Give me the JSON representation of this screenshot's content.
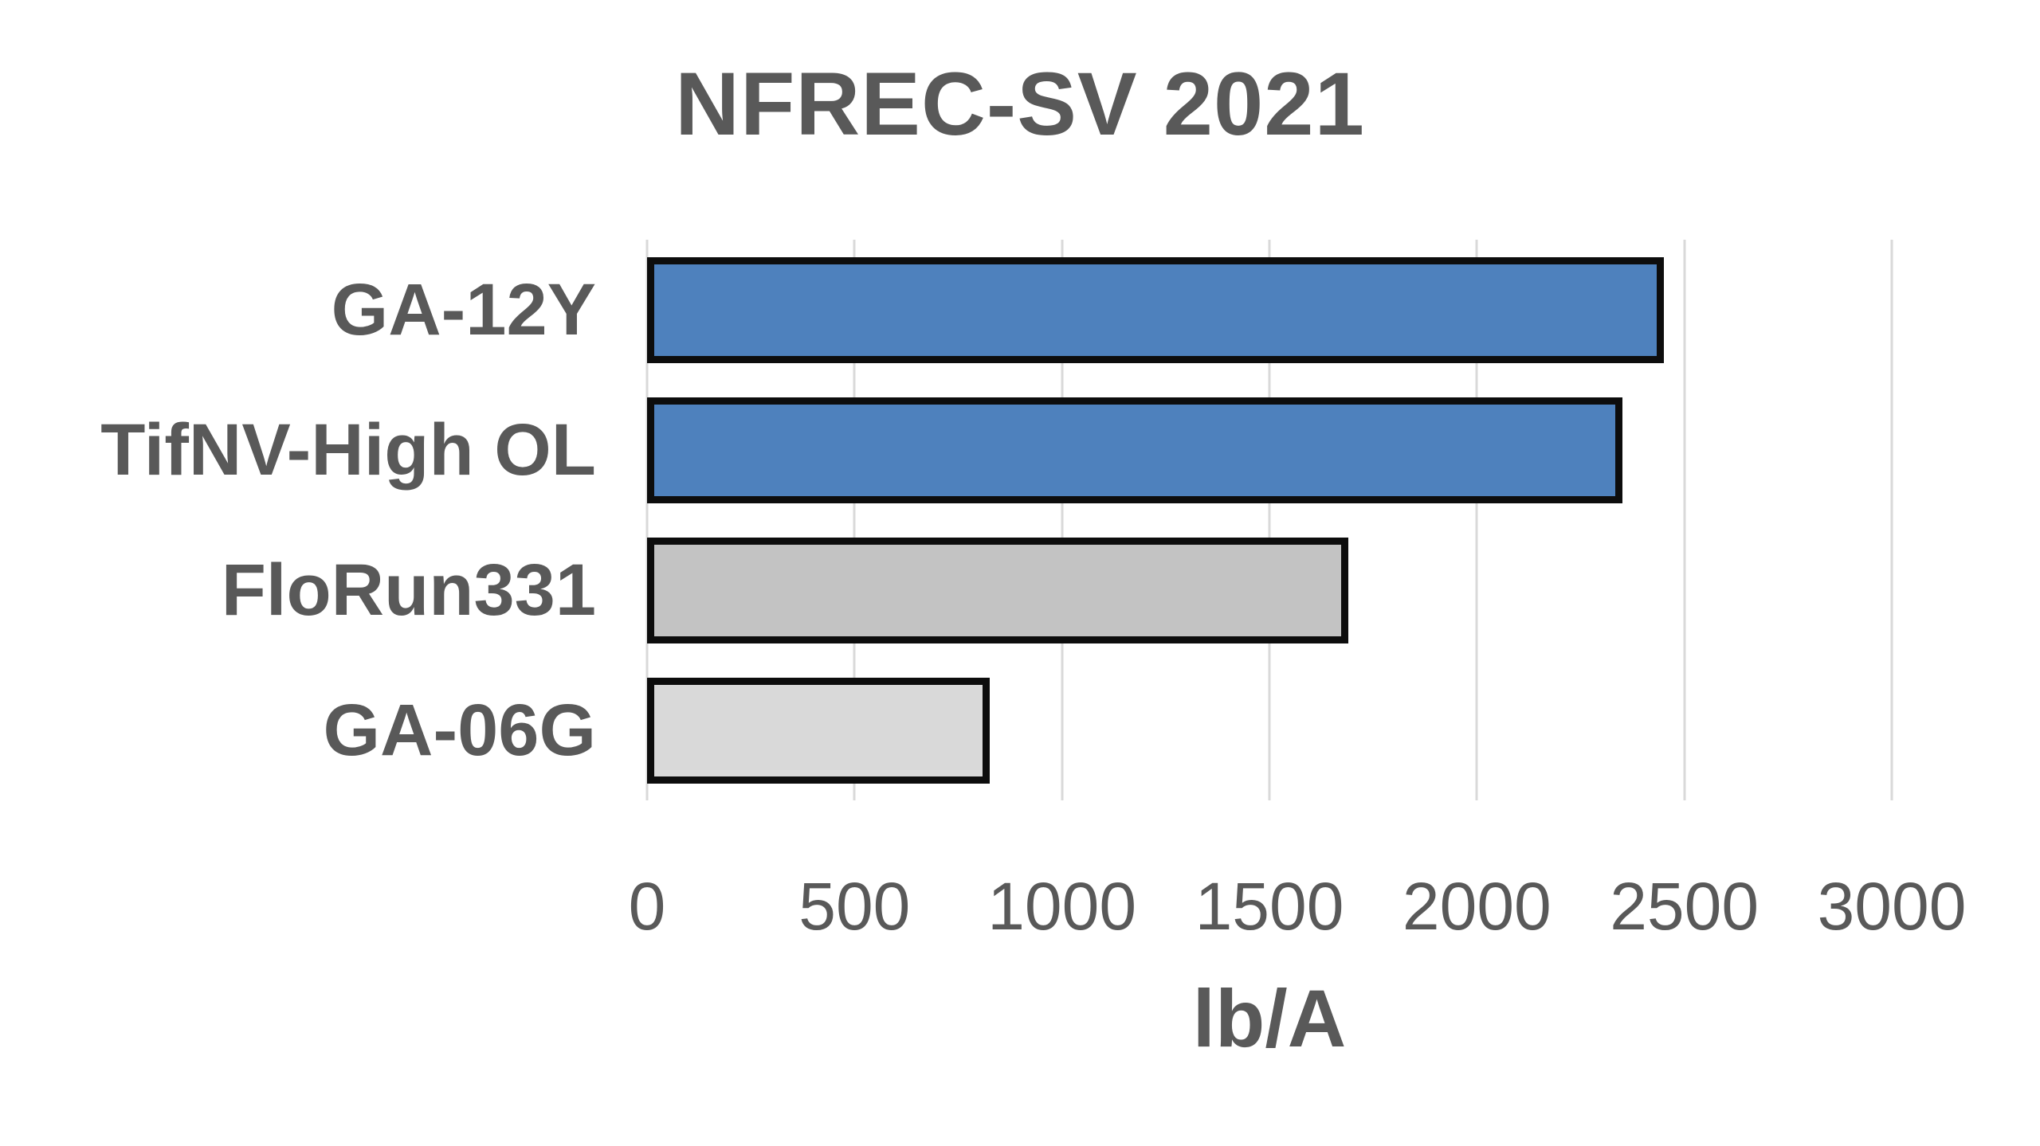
{
  "chart_data": {
    "type": "bar",
    "orientation": "horizontal",
    "title": "NFREC-SV 2021",
    "xlabel": "lb/A",
    "ylabel": "",
    "categories": [
      "GA-12Y",
      "TifNV-High OL",
      "FloRun331",
      "GA-06G"
    ],
    "values": [
      2450,
      2350,
      1690,
      825
    ],
    "bar_colors": [
      "#4E81BD",
      "#4E81BD",
      "#C3C3C3",
      "#D9D9D9"
    ],
    "bar_border_color": "#0D0D0D",
    "x_ticks": [
      0,
      500,
      1000,
      1500,
      2000,
      2500,
      3000
    ],
    "xlim": [
      0,
      3000
    ],
    "grid": "vertical-only",
    "grid_color": "#D9D9D9",
    "text_color": "#595959",
    "background_color": "#FFFFFF",
    "legend": "none"
  }
}
